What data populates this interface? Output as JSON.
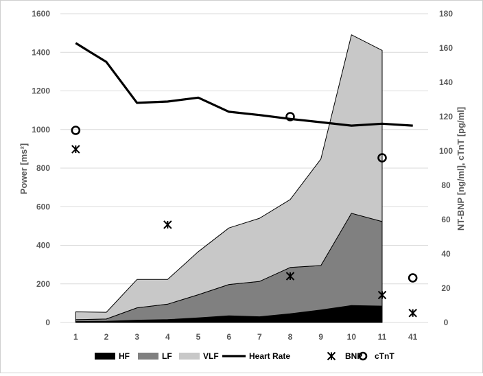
{
  "chart_data": {
    "type": "area",
    "categories": [
      "1",
      "2",
      "3",
      "4",
      "5",
      "6",
      "7",
      "8",
      "9",
      "10",
      "11",
      "41"
    ],
    "ylabel": "Power [ms²]",
    "ylabel_right": "NT-BNP [ng/ml], cTnT [pg/ml]",
    "ylim": [
      0,
      1600
    ],
    "ylim_right": [
      0,
      180
    ],
    "yticks": [
      "0",
      "200",
      "400",
      "600",
      "800",
      "1000",
      "1200",
      "1400",
      "1600"
    ],
    "yticks_right": [
      "0",
      "20",
      "40",
      "60",
      "80",
      "100",
      "120",
      "140",
      "160",
      "180"
    ],
    "grid": "horizontal",
    "legend_position": "bottom",
    "stacked_series": [
      {
        "name": "HF",
        "color": "#000000",
        "values": [
          5,
          6,
          12,
          15,
          24,
          35,
          30,
          45,
          65,
          88,
          85,
          null
        ]
      },
      {
        "name": "LF",
        "color": "#808080",
        "values": [
          10,
          12,
          64,
          80,
          120,
          162,
          183,
          240,
          230,
          478,
          438,
          null
        ]
      },
      {
        "name": "VLF",
        "color": "#c8c8c8",
        "values": [
          40,
          35,
          147,
          128,
          223,
          293,
          327,
          352,
          552,
          925,
          887,
          null
        ]
      }
    ],
    "heart_rate": {
      "name": "Heart Rate",
      "color": "#000000",
      "axis": "left",
      "values": [
        1448,
        1350,
        1138,
        1145,
        1165,
        1092,
        1075,
        1055,
        1038,
        1020,
        1030,
        1020
      ]
    },
    "bnp": {
      "name": "BNP",
      "axis": "right",
      "marker": "asterisk",
      "values": [
        101,
        null,
        null,
        57,
        null,
        null,
        null,
        27,
        null,
        null,
        16,
        5.5
      ]
    },
    "ctnt": {
      "name": "cTnT",
      "axis": "right",
      "marker": "circle",
      "values": [
        112,
        null,
        null,
        null,
        null,
        null,
        null,
        120,
        null,
        null,
        96,
        26
      ]
    }
  }
}
